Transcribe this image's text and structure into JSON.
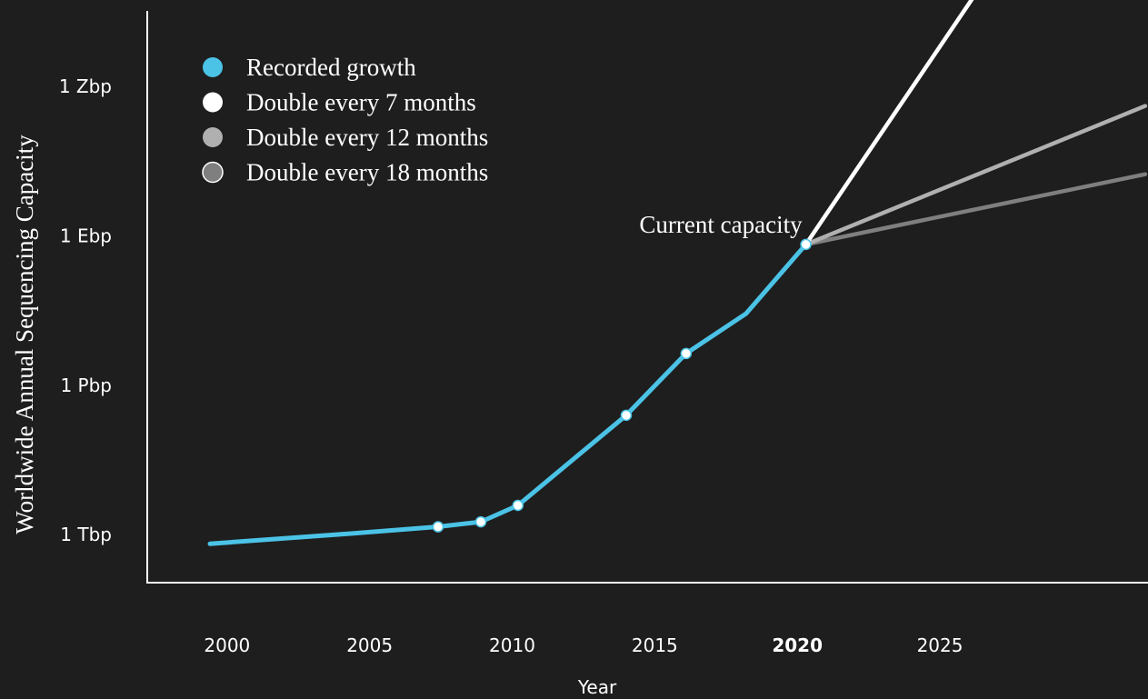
{
  "chart_data": {
    "type": "line",
    "xlabel": "Year",
    "ylabel": "Worldwide Annual Sequencing Capacity",
    "x_ticks": [
      {
        "value": 2000,
        "label": "2000",
        "bold": false
      },
      {
        "value": 2005,
        "label": "2005",
        "bold": false
      },
      {
        "value": 2010,
        "label": "2010",
        "bold": false
      },
      {
        "value": 2015,
        "label": "2015",
        "bold": false
      },
      {
        "value": 2020,
        "label": "2020",
        "bold": true
      },
      {
        "value": 2025,
        "label": "2025",
        "bold": false
      }
    ],
    "y_scale": "log10",
    "y_unit": "bp",
    "y_ticks": [
      {
        "log10": 12,
        "label": "1 Tbp"
      },
      {
        "log10": 15,
        "label": "1 Pbp"
      },
      {
        "log10": 18,
        "label": "1 Ebp"
      },
      {
        "log10": 21,
        "label": "1 Zbp"
      }
    ],
    "xlim": [
      1997.2,
      2032.3
    ],
    "ylim_log10": [
      11.0,
      22.5
    ],
    "legend_position": "top-left",
    "series": [
      {
        "name": "Recorded growth",
        "color": "#4bc3e6",
        "x": [
          1999.4,
          2004.0,
          2007.4,
          2008.9,
          2010.2,
          2014.0,
          2016.1,
          2018.2,
          2020.3
        ],
        "log10_y": [
          11.8,
          11.99,
          12.14,
          12.24,
          12.57,
          14.38,
          15.62,
          16.42,
          17.81
        ],
        "marked_x": [
          2007.4,
          2008.9,
          2010.2,
          2014.0,
          2016.1,
          2020.3
        ]
      },
      {
        "name": "Double every 7 months",
        "color": "#ffffff",
        "x": [
          2020.3,
          2026.2
        ],
        "log10_y": [
          17.81,
          22.8
        ]
      },
      {
        "name": "Double every 12 months",
        "color": "#b0b0b0",
        "x": [
          2020.3,
          2032.2
        ],
        "log10_y": [
          17.81,
          20.59
        ]
      },
      {
        "name": "Double every 18 months",
        "color": "#7f7f7f",
        "x": [
          2020.3,
          2032.2
        ],
        "log10_y": [
          17.81,
          19.22
        ]
      }
    ],
    "annotations": [
      {
        "text": "Current capacity",
        "x": 2020.3,
        "log10_y": 17.81
      }
    ]
  }
}
